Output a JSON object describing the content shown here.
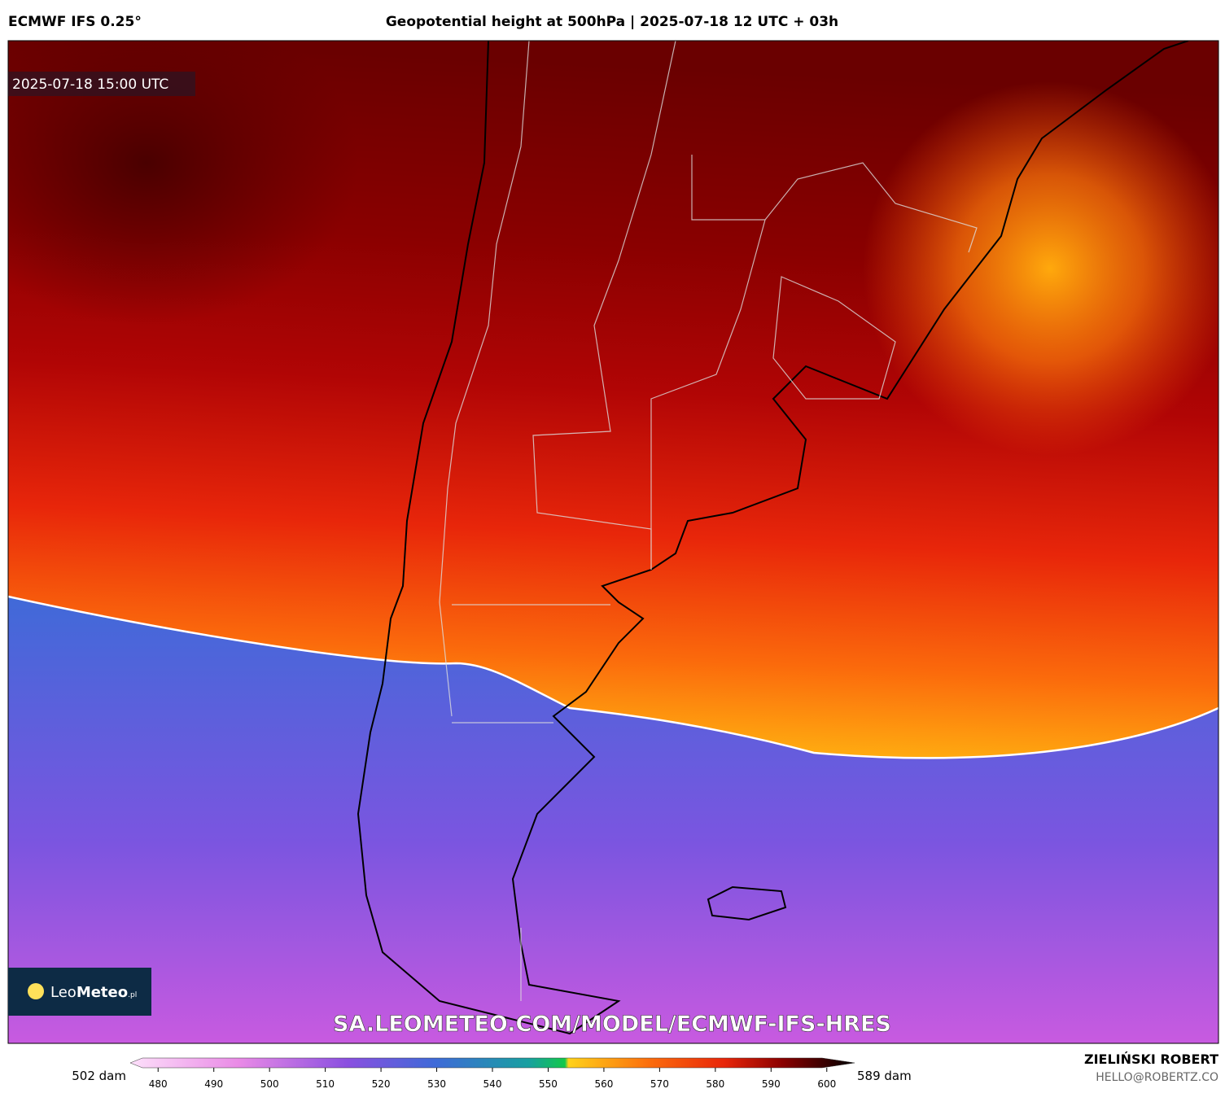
{
  "header": {
    "model": "ECMWF IFS 0.25°",
    "title": "Geopotential height at 500hPa | 2025-07-18 12 UTC + 03h"
  },
  "map": {
    "valid_time": "2025-07-18 15:00 UTC",
    "logo": {
      "name_light": "Leo",
      "name_bold": "Meteo",
      "suffix": ".pl"
    },
    "watermark": "SA.LEOMETEO.COM/MODEL/ECMWF-IFS-HRES"
  },
  "colorbar": {
    "range": [
      475,
      605
    ],
    "ticks": [
      480,
      490,
      500,
      510,
      520,
      530,
      540,
      550,
      560,
      570,
      580,
      590,
      600
    ],
    "min_label": "502 dam",
    "max_label": "589 dam"
  },
  "credits": {
    "author": "ZIELIŃSKI ROBERT",
    "contact": "HELLO@ROBERTZ.CO"
  }
}
